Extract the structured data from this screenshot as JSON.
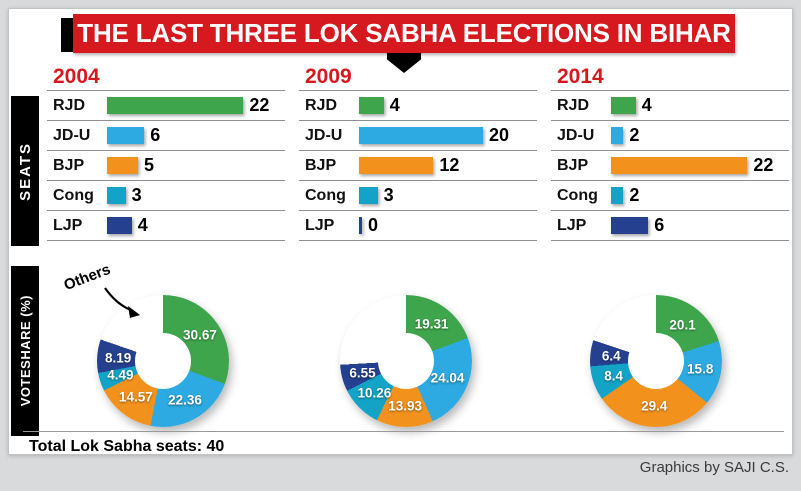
{
  "title": "THE LAST THREE LOK SABHA ELECTIONS IN BIHAR",
  "sidebar": {
    "seats": "SEATS",
    "voteshare": "VOTESHARE (%)"
  },
  "others_label": "Others",
  "footer": {
    "total_seats": "Total Lok Sabha seats: 40"
  },
  "credit": "Graphics by SAJI C.S.",
  "years": [
    "2004",
    "2009",
    "2014"
  ],
  "parties": [
    "RJD",
    "JD-U",
    "BJP",
    "Cong",
    "LJP"
  ],
  "colors": {
    "accent_red": "#d6191f",
    "black": "#000000",
    "rjd_green": "#3fa54c",
    "jdu_blue": "#2caae1",
    "bjp_orange": "#f2921d",
    "cong_teal": "#12a3c6",
    "ljp_navy": "#25408f",
    "others_white": "#ffffff"
  },
  "chart_data": [
    {
      "type": "bar",
      "title": "Seats won by party in Bihar Lok Sabha elections",
      "categories": [
        "RJD",
        "JD-U",
        "BJP",
        "Cong",
        "LJP"
      ],
      "series": [
        {
          "name": "2004",
          "values": [
            22,
            6,
            5,
            3,
            4
          ]
        },
        {
          "name": "2009",
          "values": [
            4,
            20,
            12,
            3,
            0
          ]
        },
        {
          "name": "2014",
          "values": [
            4,
            2,
            22,
            2,
            6
          ]
        }
      ],
      "xlabel": "",
      "ylabel": "Seats",
      "total_note": "Total Lok Sabha seats: 40"
    },
    {
      "type": "pie",
      "title": "Voteshare (%)",
      "labels": [
        "RJD",
        "JD-U",
        "BJP",
        "Cong",
        "LJP",
        "Others"
      ],
      "show_labels": [
        true,
        true,
        true,
        true,
        true,
        false
      ],
      "series": [
        {
          "name": "2004",
          "values": [
            30.67,
            22.36,
            14.57,
            4.49,
            8.19,
            19.72
          ]
        },
        {
          "name": "2009",
          "values": [
            19.31,
            24.04,
            13.93,
            10.26,
            6.55,
            25.91
          ]
        },
        {
          "name": "2014",
          "values": [
            20.1,
            15.8,
            29.4,
            8.4,
            6.4,
            19.9
          ]
        }
      ]
    }
  ]
}
